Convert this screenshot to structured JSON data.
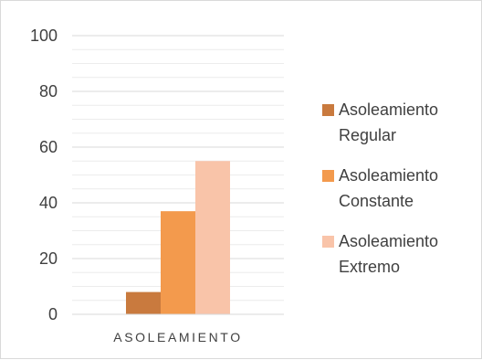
{
  "chart_data": {
    "type": "bar",
    "title": "",
    "xlabel": "",
    "ylabel": "",
    "categories": [
      "ASOLEAMIENTO"
    ],
    "series": [
      {
        "name": "Asoleamiento Regular",
        "values": [
          8
        ],
        "color": "#c97a3e",
        "legend_lines": [
          "Asoleamiento",
          "Regular"
        ]
      },
      {
        "name": "Asoleamiento Constante",
        "values": [
          37
        ],
        "color": "#f39a4d",
        "legend_lines": [
          "Asoleamiento",
          "Constante"
        ]
      },
      {
        "name": "Asoleamiento Extremo",
        "values": [
          55
        ],
        "color": "#f9c4a9",
        "legend_lines": [
          "Asoleamiento",
          "Extremo"
        ]
      }
    ],
    "ylim": [
      0,
      100
    ],
    "y_ticks": [
      0,
      20,
      40,
      60,
      80,
      100
    ],
    "grid": true,
    "legend_position": "right"
  }
}
